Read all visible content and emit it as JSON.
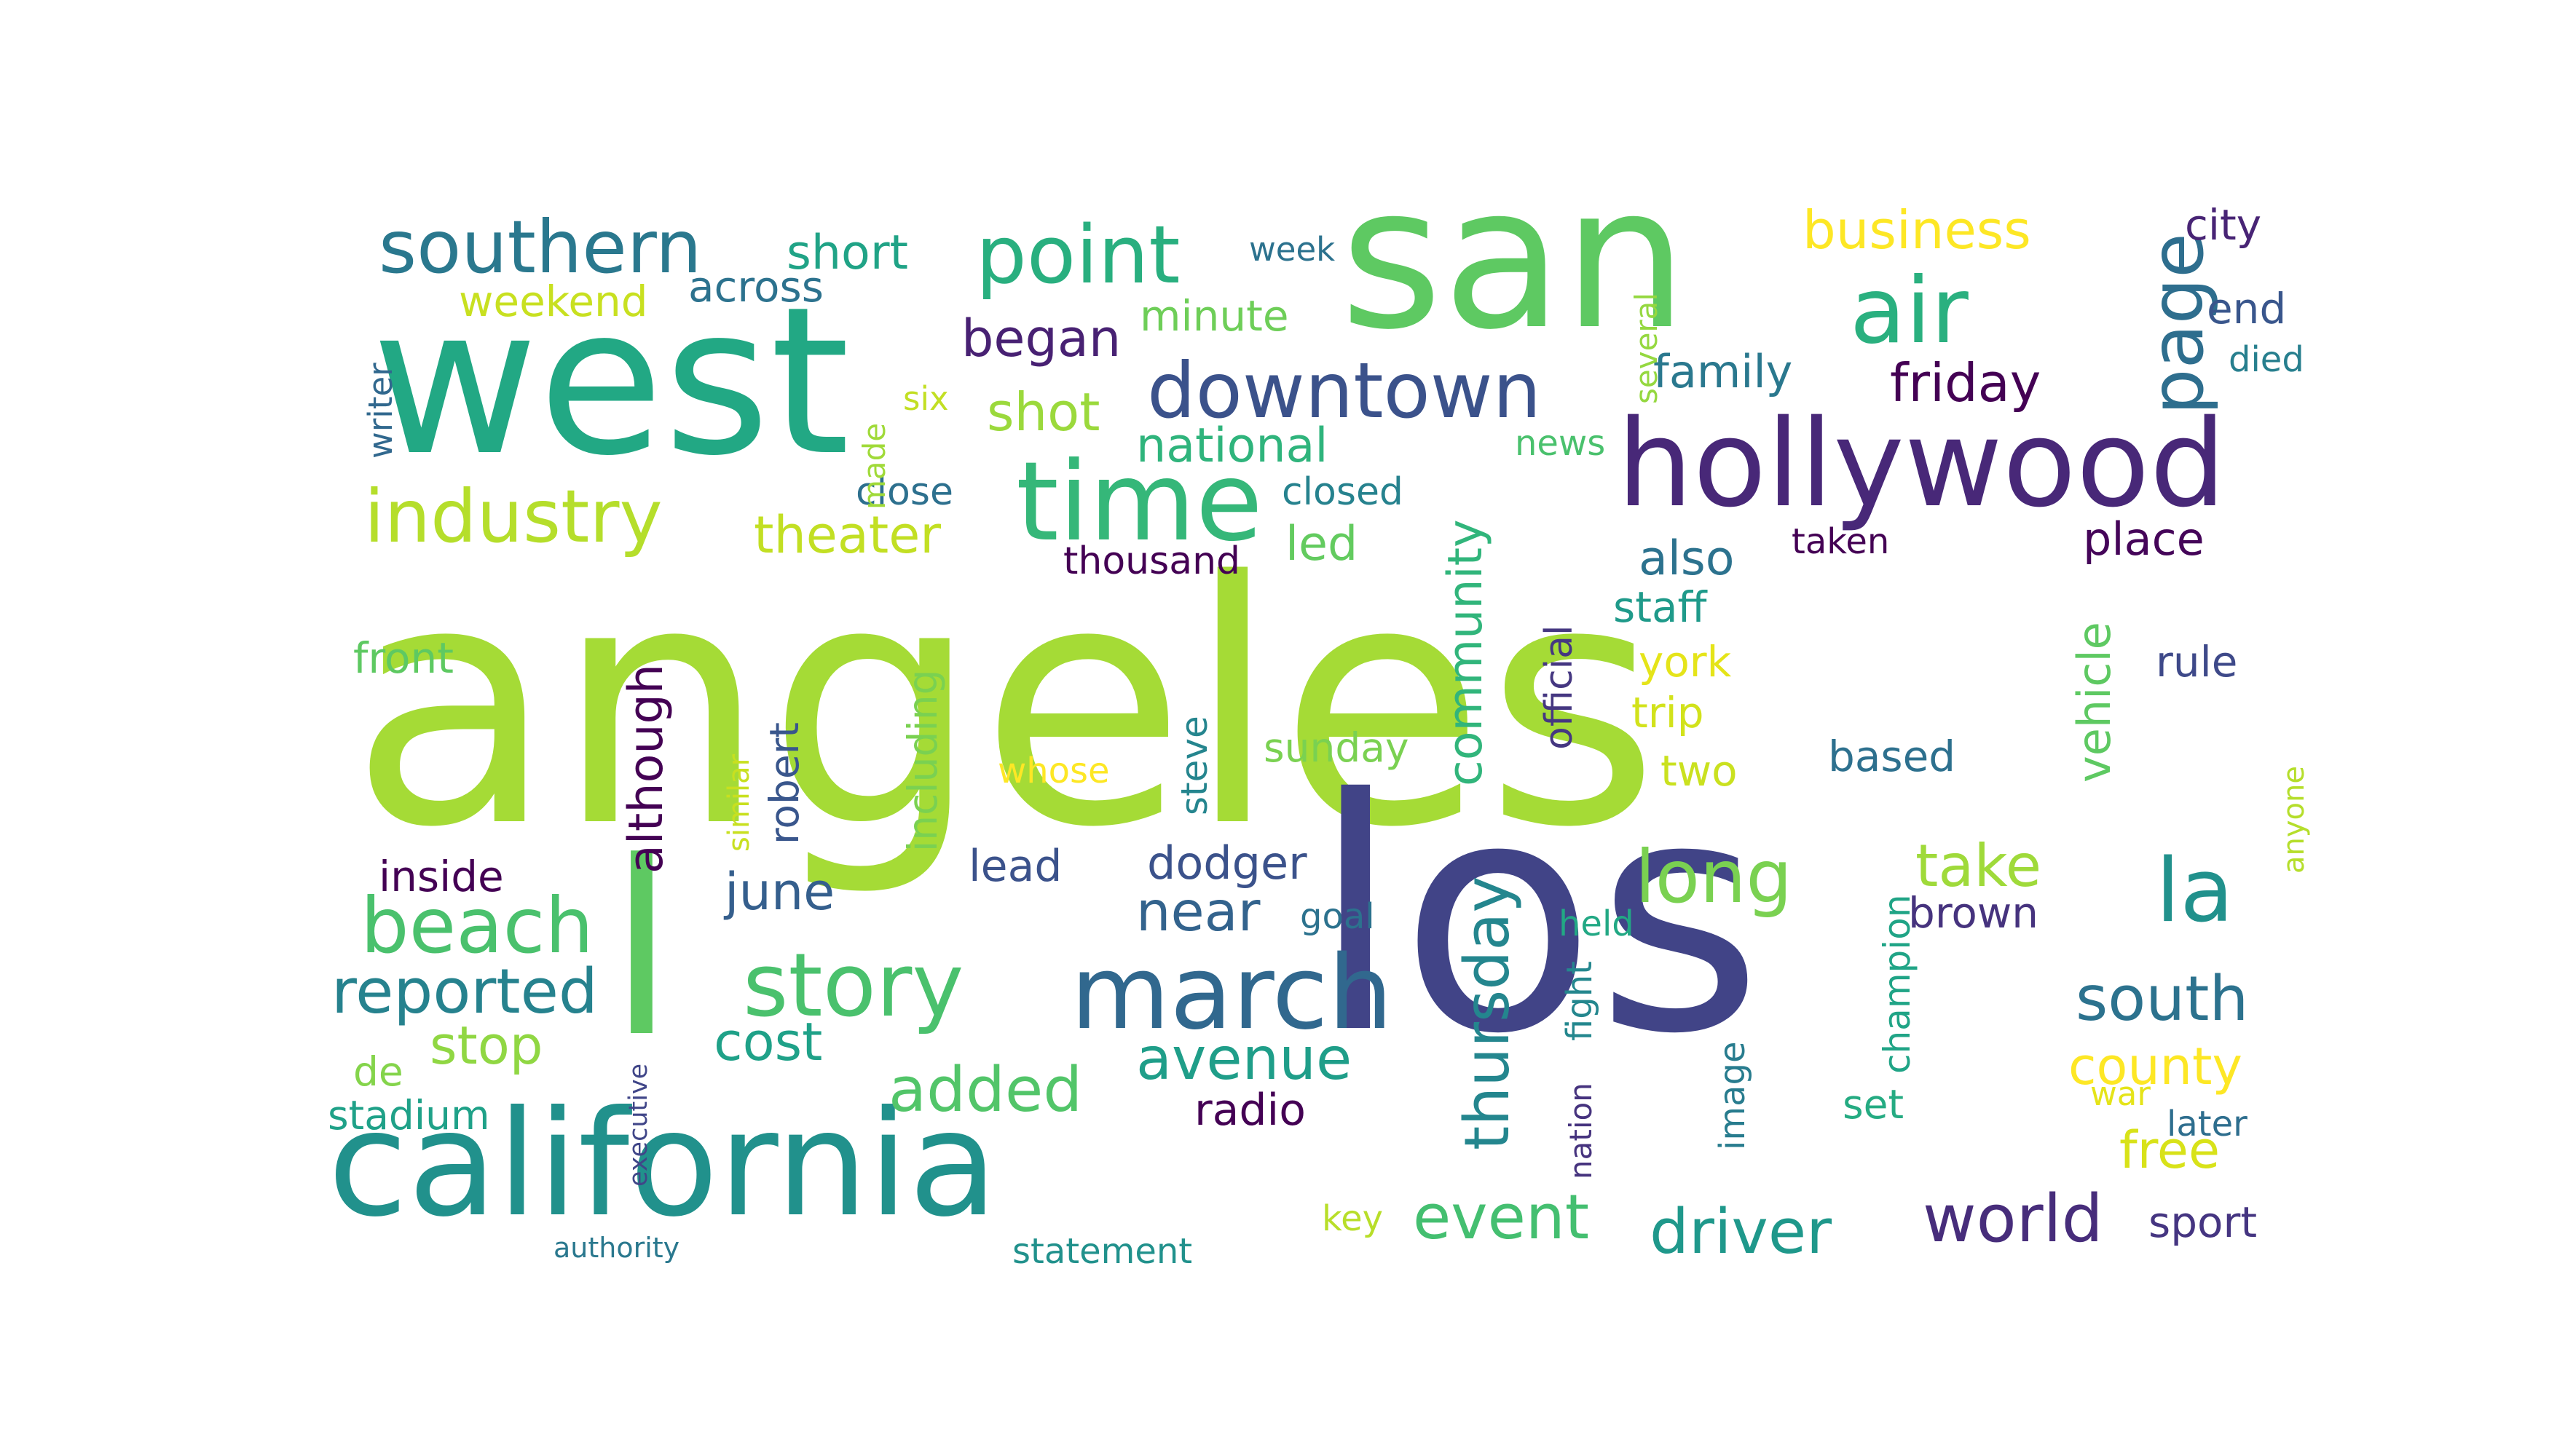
{
  "words": [
    {
      "text": "angeles",
      "color": "#a5db36",
      "rotate": 0
    },
    {
      "text": "los",
      "color": "#414487",
      "rotate": 0
    },
    {
      "text": "west",
      "color": "#22a884",
      "rotate": 0
    },
    {
      "text": "san",
      "color": "#5ec962",
      "rotate": 0
    },
    {
      "text": "california",
      "color": "#21918c",
      "rotate": 0
    },
    {
      "text": "hollywood",
      "color": "#482878",
      "rotate": 0
    },
    {
      "text": "l",
      "color": "#5ec962",
      "rotate": 0
    },
    {
      "text": "time",
      "color": "#35b779",
      "rotate": 0
    },
    {
      "text": "point",
      "color": "#29af7f",
      "rotate": 0
    },
    {
      "text": "air",
      "color": "#2ab07f",
      "rotate": 0
    },
    {
      "text": "march",
      "color": "#31688e",
      "rotate": 0
    },
    {
      "text": "downtown",
      "color": "#3b528b",
      "rotate": 0
    },
    {
      "text": "southern",
      "color": "#2a788e",
      "rotate": 0
    },
    {
      "text": "story",
      "color": "#4ac16d",
      "rotate": 0
    },
    {
      "text": "industry",
      "color": "#b5de2b",
      "rotate": 0
    },
    {
      "text": "beach",
      "color": "#4ac16d",
      "rotate": 0
    },
    {
      "text": "page",
      "color": "#2e6e8e",
      "rotate": -90
    },
    {
      "text": "la",
      "color": "#21918c",
      "rotate": 0
    },
    {
      "text": "reported",
      "color": "#26828e",
      "rotate": 0
    },
    {
      "text": "long",
      "color": "#7ad151",
      "rotate": 0
    },
    {
      "text": "added",
      "color": "#52c569",
      "rotate": 0
    },
    {
      "text": "driver",
      "color": "#1f988b",
      "rotate": 0
    },
    {
      "text": "world",
      "color": "#472d7b",
      "rotate": 0
    },
    {
      "text": "event",
      "color": "#44bf70",
      "rotate": 0
    },
    {
      "text": "south",
      "color": "#2c728e",
      "rotate": 0
    },
    {
      "text": "avenue",
      "color": "#1f9e89",
      "rotate": 0
    },
    {
      "text": "thursday",
      "color": "#24868e",
      "rotate": -90
    },
    {
      "text": "community",
      "color": "#31b57b",
      "rotate": -90
    },
    {
      "text": "take",
      "color": "#9fda3a",
      "rotate": 0
    },
    {
      "text": "county",
      "color": "#fde725",
      "rotate": 0
    },
    {
      "text": "friday",
      "color": "#440154",
      "rotate": 0
    },
    {
      "text": "business",
      "color": "#fde725",
      "rotate": 0
    },
    {
      "text": "shot",
      "color": "#9bd93c",
      "rotate": 0
    },
    {
      "text": "began",
      "color": "#482173",
      "rotate": 0
    },
    {
      "text": "theater",
      "color": "#c2df23",
      "rotate": 0
    },
    {
      "text": "short",
      "color": "#20a386",
      "rotate": 0
    },
    {
      "text": "june",
      "color": "#355f8d",
      "rotate": 0
    },
    {
      "text": "near",
      "color": "#33638d",
      "rotate": 0
    },
    {
      "text": "national",
      "color": "#2fb47c",
      "rotate": 0
    },
    {
      "text": "stop",
      "color": "#90d743",
      "rotate": 0
    },
    {
      "text": "although",
      "color": "#440154",
      "rotate": -90
    },
    {
      "text": "robert",
      "color": "#39568c",
      "rotate": -90
    },
    {
      "text": "cost",
      "color": "#1fa188",
      "rotate": 0
    },
    {
      "text": "free",
      "color": "#d8e219",
      "rotate": 0
    },
    {
      "text": "vehicle",
      "color": "#5ec962",
      "rotate": -90
    },
    {
      "text": "led",
      "color": "#63cb5f",
      "rotate": 0
    },
    {
      "text": "also",
      "color": "#2c728e",
      "rotate": 0
    },
    {
      "text": "family",
      "color": "#2a788e",
      "rotate": 0
    },
    {
      "text": "dodger",
      "color": "#3b528b",
      "rotate": 0
    },
    {
      "text": "minute",
      "color": "#6ece58",
      "rotate": 0
    },
    {
      "text": "weekend",
      "color": "#c8e020",
      "rotate": 0
    },
    {
      "text": "across",
      "color": "#2c728e",
      "rotate": 0
    },
    {
      "text": "including",
      "color": "#7ad151",
      "rotate": -90
    },
    {
      "text": "official",
      "color": "#453781",
      "rotate": -90
    },
    {
      "text": "steve",
      "color": "#25858e",
      "rotate": -90
    },
    {
      "text": "champion",
      "color": "#20a486",
      "rotate": -90
    },
    {
      "text": "image",
      "color": "#287c8e",
      "rotate": -90
    },
    {
      "text": "fight",
      "color": "#24878e",
      "rotate": -90
    },
    {
      "text": "place",
      "color": "#450559",
      "rotate": 0
    },
    {
      "text": "sunday",
      "color": "#7ad151",
      "rotate": 0
    },
    {
      "text": "radio",
      "color": "#440154",
      "rotate": 0
    },
    {
      "text": "lead",
      "color": "#3b528b",
      "rotate": 0
    },
    {
      "text": "york",
      "color": "#e5e419",
      "rotate": 0
    },
    {
      "text": "trip",
      "color": "#d2e21b",
      "rotate": 0
    },
    {
      "text": "two",
      "color": "#cae11f",
      "rotate": 0
    },
    {
      "text": "based",
      "color": "#2d708e",
      "rotate": 0
    },
    {
      "text": "brown",
      "color": "#46337e",
      "rotate": 0
    },
    {
      "text": "inside",
      "color": "#440154",
      "rotate": 0
    },
    {
      "text": "front",
      "color": "#5ec962",
      "rotate": 0
    },
    {
      "text": "stadium",
      "color": "#1fa188",
      "rotate": 0
    },
    {
      "text": "de",
      "color": "#84d44b",
      "rotate": 0
    },
    {
      "text": "staff",
      "color": "#1f9a8a",
      "rotate": 0
    },
    {
      "text": "end",
      "color": "#39568c",
      "rotate": 0
    },
    {
      "text": "city",
      "color": "#482475",
      "rotate": 0
    },
    {
      "text": "rule",
      "color": "#3e4989",
      "rotate": 0
    },
    {
      "text": "set",
      "color": "#25ab82",
      "rotate": 0
    },
    {
      "text": "later",
      "color": "#2e6e8e",
      "rotate": 0
    },
    {
      "text": "sport",
      "color": "#453581",
      "rotate": 0
    },
    {
      "text": "thousand",
      "color": "#440154",
      "rotate": 0
    },
    {
      "text": "closed",
      "color": "#26828e",
      "rotate": 0
    },
    {
      "text": "close",
      "color": "#2d708e",
      "rotate": 0
    },
    {
      "text": "news",
      "color": "#4ac16d",
      "rotate": 0
    },
    {
      "text": "taken",
      "color": "#440154",
      "rotate": 0
    },
    {
      "text": "died",
      "color": "#277f8e",
      "rotate": 0
    },
    {
      "text": "whose",
      "color": "#fde725",
      "rotate": 0
    },
    {
      "text": "goal",
      "color": "#2c728e",
      "rotate": 0
    },
    {
      "text": "held",
      "color": "#22a884",
      "rotate": 0
    },
    {
      "text": "key",
      "color": "#b8de29",
      "rotate": 0
    },
    {
      "text": "statement",
      "color": "#21918c",
      "rotate": 0
    },
    {
      "text": "nation",
      "color": "#46337e",
      "rotate": -90
    },
    {
      "text": "war",
      "color": "#e5e419",
      "rotate": 0
    },
    {
      "text": "week",
      "color": "#2c728e",
      "rotate": 0
    },
    {
      "text": "six",
      "color": "#c2df23",
      "rotate": 0
    },
    {
      "text": "made",
      "color": "#a0da39",
      "rotate": -90
    },
    {
      "text": "writer",
      "color": "#31688e",
      "rotate": -90
    },
    {
      "text": "several",
      "color": "#95d840",
      "rotate": -90
    },
    {
      "text": "similar",
      "color": "#c8e020",
      "rotate": -90
    },
    {
      "text": "anyone",
      "color": "#b5de2b",
      "rotate": -90
    },
    {
      "text": "executive",
      "color": "#404688",
      "rotate": -90
    },
    {
      "text": "authority",
      "color": "#2a788e",
      "rotate": 0
    }
  ]
}
